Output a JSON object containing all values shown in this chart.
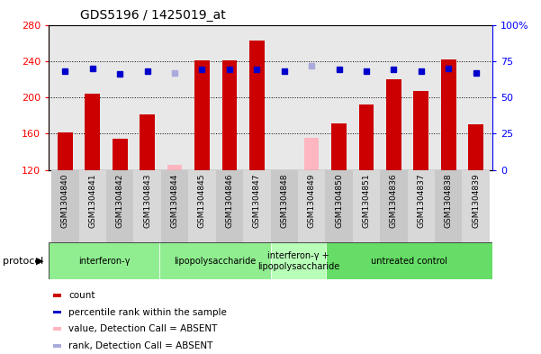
{
  "title": "GDS5196 / 1425019_at",
  "samples": [
    "GSM1304840",
    "GSM1304841",
    "GSM1304842",
    "GSM1304843",
    "GSM1304844",
    "GSM1304845",
    "GSM1304846",
    "GSM1304847",
    "GSM1304848",
    "GSM1304849",
    "GSM1304850",
    "GSM1304851",
    "GSM1304836",
    "GSM1304837",
    "GSM1304838",
    "GSM1304839"
  ],
  "counts": [
    161,
    204,
    154,
    181,
    126,
    241,
    241,
    263,
    119,
    155,
    171,
    192,
    220,
    207,
    242,
    170
  ],
  "absent_count": [
    false,
    false,
    false,
    false,
    true,
    false,
    false,
    false,
    true,
    true,
    false,
    false,
    false,
    false,
    false,
    false
  ],
  "ranks": [
    68,
    70,
    66,
    68,
    67,
    69,
    69,
    69,
    68,
    72,
    69,
    68,
    69,
    68,
    70,
    67
  ],
  "absent_rank": [
    false,
    false,
    false,
    false,
    true,
    false,
    false,
    false,
    false,
    true,
    false,
    false,
    false,
    false,
    false,
    false
  ],
  "ylim_left": [
    120,
    280
  ],
  "ylim_right": [
    0,
    100
  ],
  "yticks_left": [
    120,
    160,
    200,
    240,
    280
  ],
  "yticks_right": [
    0,
    25,
    50,
    75,
    100
  ],
  "groups": [
    {
      "label": "interferon-γ",
      "start": 0,
      "end": 4
    },
    {
      "label": "lipopolysaccharide",
      "start": 4,
      "end": 8
    },
    {
      "label": "interferon-γ +\nlipopolysaccharide",
      "start": 8,
      "end": 10
    },
    {
      "label": "untreated control",
      "start": 10,
      "end": 16
    }
  ],
  "group_colors": [
    "#90EE90",
    "#90EE90",
    "#b8ffb8",
    "#66DD66"
  ],
  "bar_color_present": "#CC0000",
  "bar_color_absent": "#FFB6C1",
  "rank_color_present": "#0000CC",
  "rank_color_absent": "#AAAADD",
  "bar_width": 0.55,
  "plot_bg": "#E8E8E8",
  "xtick_bg": "#D0D0D0",
  "legend_items": [
    {
      "color": "#CC0000",
      "label": "count"
    },
    {
      "color": "#0000CC",
      "label": "percentile rank within the sample"
    },
    {
      "color": "#FFB6C1",
      "label": "value, Detection Call = ABSENT"
    },
    {
      "color": "#AAAADD",
      "label": "rank, Detection Call = ABSENT"
    }
  ]
}
